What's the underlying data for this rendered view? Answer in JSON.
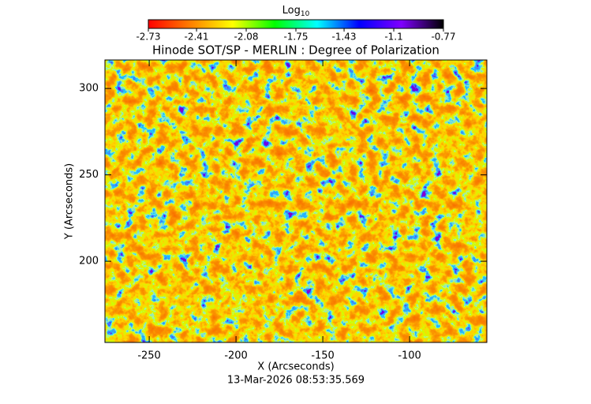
{
  "chart_data": {
    "type": "image",
    "title": "Hinode SOT/SP - MERLIN : Degree of Polarization",
    "x_label": "X (Arcseconds)",
    "y_label": "Y (Arcseconds)",
    "timestamp": "13-Mar-2026 08:53:35.569",
    "xlim": [
      -275.5,
      -55.5
    ],
    "ylim": [
      153,
      316.5
    ],
    "xticks": [
      -250,
      -200,
      -150,
      -100
    ],
    "yticks": [
      200,
      250,
      300
    ],
    "colorbar": {
      "label": "Log",
      "label_subscript": "10",
      "lim": [
        -2.73,
        -0.77
      ],
      "ticks": [
        -2.73,
        -2.41,
        -2.08,
        -1.75,
        -1.43,
        -1.1,
        -0.77
      ],
      "colors": [
        "#ff0000",
        "#ff7f00",
        "#ffff00",
        "#00ff00",
        "#00ffff",
        "#0000ff",
        "#7f00ff",
        "#000000"
      ]
    }
  }
}
